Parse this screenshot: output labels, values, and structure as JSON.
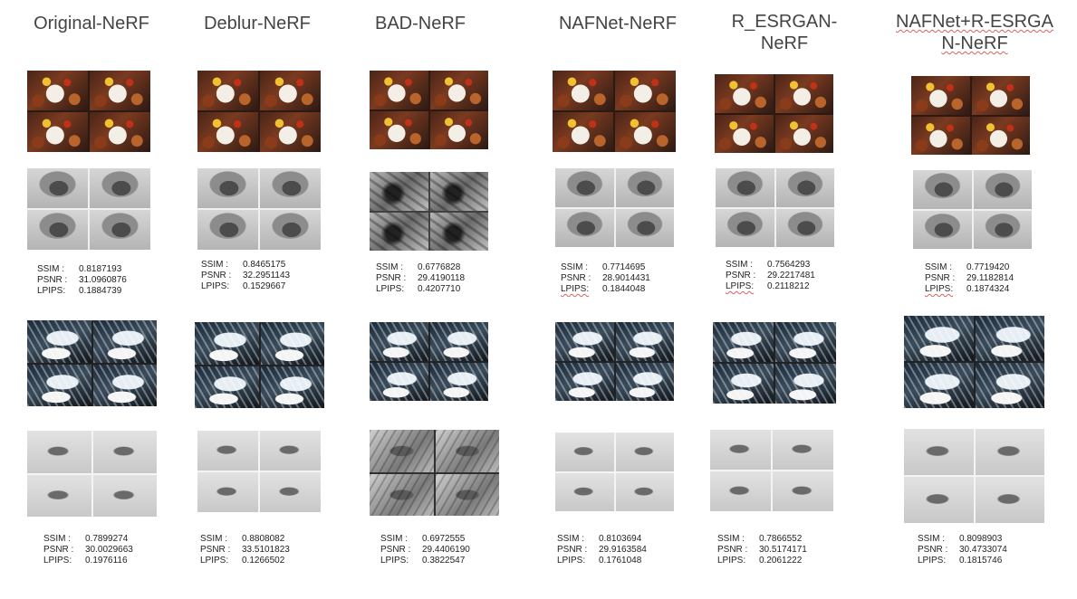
{
  "columns": [
    {
      "title": "Original-NeRF",
      "metrics_a": {
        "ssim": "0.8187193",
        "psnr": "31.0960876",
        "lpips": "0.1884739"
      },
      "metrics_b": {
        "ssim": "0.7899274",
        "psnr": "30.0029663",
        "lpips": "0.1976116"
      }
    },
    {
      "title": "Deblur-NeRF",
      "metrics_a": {
        "ssim": "0.8465175",
        "psnr": "32.2951143",
        "lpips": "0.1529667"
      },
      "metrics_b": {
        "ssim": "0.8808082",
        "psnr": "33.5101823",
        "lpips": "0.1266502"
      }
    },
    {
      "title": "BAD-NeRF",
      "metrics_a": {
        "ssim": "0.6776828",
        "psnr": "29.4190118",
        "lpips": "0.4207710"
      },
      "metrics_b": {
        "ssim": "0.6972555",
        "psnr": "29.4406190",
        "lpips": "0.3822547"
      }
    },
    {
      "title": "NAFNet-NeRF",
      "metrics_a": {
        "ssim": "0.7714695",
        "psnr": "28.9014431",
        "lpips": "0.1844048"
      },
      "metrics_b": {
        "ssim": "0.8103694",
        "psnr": "29.9163584",
        "lpips": "0.1761048"
      }
    },
    {
      "title": "R_ESRGAN-NeRF",
      "title_line1": "R_ESRGAN-",
      "title_line2": "NeRF",
      "metrics_a": {
        "ssim": "0.7564293",
        "psnr": "29.2217481",
        "lpips": "0.2118212"
      },
      "metrics_b": {
        "ssim": "0.7866552",
        "psnr": "30.5174171",
        "lpips": "0.2061222"
      }
    },
    {
      "title": "NAFNet+R-ESRGAN-NeRF",
      "title_line1": "NAFNet+R-ESRGA",
      "title_line2": "N-NeRF",
      "metrics_a": {
        "ssim": "0.7719420",
        "psnr": "29.1182814",
        "lpips": "0.1874324"
      },
      "metrics_b": {
        "ssim": "0.8098903",
        "psnr": "30.4733074",
        "lpips": "0.1815746"
      }
    }
  ],
  "labels": {
    "ssim": "SSIM :",
    "psnr": "PSNR :",
    "lpips": "LPIPS:"
  }
}
